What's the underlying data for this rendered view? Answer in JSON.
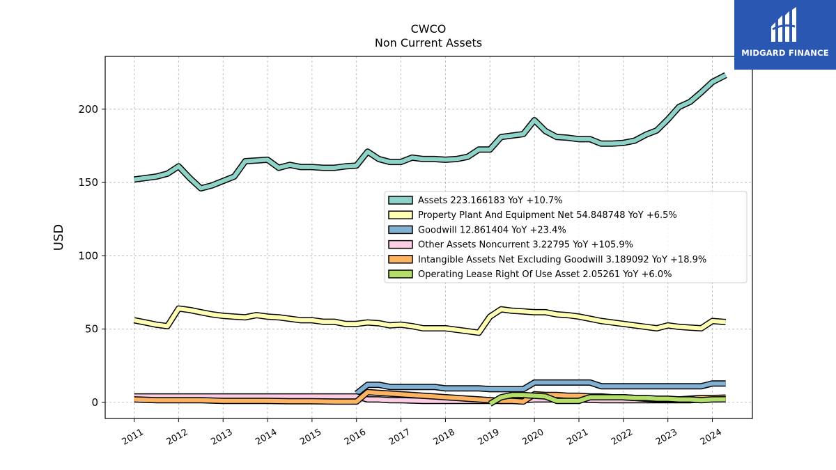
{
  "chart_data": {
    "type": "line",
    "title": "CWCO",
    "subtitle": "Non Current  Assets",
    "ylabel": "USD",
    "xlabel": "",
    "ylim": [
      -11,
      236
    ],
    "xlim": [
      2010.35,
      2024.9
    ],
    "yticks": [
      0,
      50,
      100,
      150,
      200
    ],
    "xticks": [
      "2011",
      "2012",
      "2013",
      "2014",
      "2015",
      "2016",
      "2017",
      "2018",
      "2019",
      "2020",
      "2021",
      "2022",
      "2023",
      "2024"
    ],
    "grid": true,
    "legend_position": "center-right",
    "series": [
      {
        "name": "Assets  223.166183 YoY +10.7%",
        "color": "#8dd3c7",
        "points": [
          [
            2011.0,
            152
          ],
          [
            2011.25,
            153
          ],
          [
            2011.5,
            154
          ],
          [
            2011.75,
            156
          ],
          [
            2012.0,
            161
          ],
          [
            2012.25,
            153
          ],
          [
            2012.5,
            146
          ],
          [
            2012.75,
            148
          ],
          [
            2013.0,
            151
          ],
          [
            2013.25,
            154
          ],
          [
            2013.5,
            164.5
          ],
          [
            2013.75,
            165
          ],
          [
            2014.0,
            165.5
          ],
          [
            2014.25,
            160
          ],
          [
            2014.5,
            162
          ],
          [
            2014.75,
            160.5
          ],
          [
            2015.0,
            160.5
          ],
          [
            2015.25,
            160
          ],
          [
            2015.5,
            160
          ],
          [
            2015.75,
            161
          ],
          [
            2016.0,
            161.5
          ],
          [
            2016.25,
            171
          ],
          [
            2016.5,
            166
          ],
          [
            2016.75,
            164
          ],
          [
            2017.0,
            164
          ],
          [
            2017.25,
            167
          ],
          [
            2017.5,
            166
          ],
          [
            2017.75,
            166
          ],
          [
            2018.0,
            165.5
          ],
          [
            2018.25,
            166
          ],
          [
            2018.5,
            167.5
          ],
          [
            2018.75,
            172.5
          ],
          [
            2019.0,
            172.5
          ],
          [
            2019.25,
            181
          ],
          [
            2019.5,
            182
          ],
          [
            2019.75,
            183
          ],
          [
            2020.0,
            192.5
          ],
          [
            2020.25,
            185
          ],
          [
            2020.5,
            181
          ],
          [
            2020.75,
            180.5
          ],
          [
            2021.0,
            179.5
          ],
          [
            2021.25,
            179.5
          ],
          [
            2021.5,
            176.5
          ],
          [
            2021.75,
            176.5
          ],
          [
            2022.0,
            177
          ],
          [
            2022.25,
            178.5
          ],
          [
            2022.5,
            182.5
          ],
          [
            2022.75,
            185.5
          ],
          [
            2023.0,
            193
          ],
          [
            2023.25,
            201.5
          ],
          [
            2023.5,
            205
          ],
          [
            2023.75,
            211.5
          ],
          [
            2024.0,
            218.5
          ],
          [
            2024.3,
            223.2
          ]
        ]
      },
      {
        "name": "Property Plant And Equipment Net  54.848748 YoY +6.5%",
        "color": "#ffffb3",
        "points": [
          [
            2011.0,
            56
          ],
          [
            2011.25,
            54.5
          ],
          [
            2011.5,
            53
          ],
          [
            2011.75,
            52
          ],
          [
            2012.0,
            64
          ],
          [
            2012.25,
            63
          ],
          [
            2012.5,
            61.5
          ],
          [
            2012.75,
            60
          ],
          [
            2013.0,
            59
          ],
          [
            2013.25,
            58.5
          ],
          [
            2013.5,
            58
          ],
          [
            2013.75,
            59.5
          ],
          [
            2014.0,
            58.5
          ],
          [
            2014.25,
            58
          ],
          [
            2014.5,
            57
          ],
          [
            2014.75,
            56
          ],
          [
            2015.0,
            56
          ],
          [
            2015.25,
            55
          ],
          [
            2015.5,
            55
          ],
          [
            2015.75,
            53.5
          ],
          [
            2016.0,
            53.5
          ],
          [
            2016.25,
            54.5
          ],
          [
            2016.5,
            54
          ],
          [
            2016.75,
            52.5
          ],
          [
            2017.0,
            53
          ],
          [
            2017.25,
            52
          ],
          [
            2017.5,
            50.5
          ],
          [
            2017.75,
            50.5
          ],
          [
            2018.0,
            50.5
          ],
          [
            2018.25,
            49.5
          ],
          [
            2018.5,
            48.5
          ],
          [
            2018.75,
            47.5
          ],
          [
            2019.0,
            58.5
          ],
          [
            2019.25,
            63.5
          ],
          [
            2019.5,
            62.5
          ],
          [
            2019.75,
            62
          ],
          [
            2020.0,
            61.5
          ],
          [
            2020.25,
            61.5
          ],
          [
            2020.5,
            60
          ],
          [
            2020.75,
            59.5
          ],
          [
            2021.0,
            58.5
          ],
          [
            2021.25,
            57
          ],
          [
            2021.5,
            55.5
          ],
          [
            2021.75,
            54.5
          ],
          [
            2022.0,
            53.5
          ],
          [
            2022.25,
            52.5
          ],
          [
            2022.5,
            51.5
          ],
          [
            2022.75,
            50.5
          ],
          [
            2023.0,
            52.5
          ],
          [
            2023.25,
            51.5
          ],
          [
            2023.5,
            51
          ],
          [
            2023.75,
            50.5
          ],
          [
            2024.0,
            55.5
          ],
          [
            2024.3,
            54.8
          ]
        ]
      },
      {
        "name": "Goodwill  12.861404 YoY +23.4%",
        "color": "#80b1d3",
        "points": [
          [
            2016.0,
            6
          ],
          [
            2016.25,
            12
          ],
          [
            2016.5,
            12
          ],
          [
            2016.75,
            10.5
          ],
          [
            2017.0,
            10.5
          ],
          [
            2017.25,
            10.5
          ],
          [
            2017.5,
            10.5
          ],
          [
            2017.75,
            10.5
          ],
          [
            2018.0,
            9.5
          ],
          [
            2018.25,
            9.5
          ],
          [
            2018.5,
            9.5
          ],
          [
            2018.75,
            9.5
          ],
          [
            2019.0,
            9
          ],
          [
            2019.25,
            9
          ],
          [
            2019.5,
            9
          ],
          [
            2019.75,
            9
          ],
          [
            2020.0,
            13.5
          ],
          [
            2020.25,
            13.5
          ],
          [
            2020.5,
            13.5
          ],
          [
            2020.75,
            13.5
          ],
          [
            2021.0,
            13.5
          ],
          [
            2021.25,
            13.5
          ],
          [
            2021.5,
            11
          ],
          [
            2021.75,
            11
          ],
          [
            2022.0,
            11
          ],
          [
            2022.25,
            11
          ],
          [
            2022.5,
            11
          ],
          [
            2022.75,
            11
          ],
          [
            2023.0,
            11
          ],
          [
            2023.25,
            11
          ],
          [
            2023.5,
            11
          ],
          [
            2023.75,
            11
          ],
          [
            2024.0,
            12.9
          ],
          [
            2024.3,
            12.9
          ]
        ]
      },
      {
        "name": "Other Assets Noncurrent  3.22795 YoY +105.9%",
        "color": "#fccde5",
        "points": [
          [
            2011.0,
            4
          ],
          [
            2012.0,
            4
          ],
          [
            2013.0,
            4
          ],
          [
            2014.0,
            4
          ],
          [
            2015.0,
            4
          ],
          [
            2016.0,
            4
          ],
          [
            2016.25,
            2
          ],
          [
            2016.5,
            2
          ],
          [
            2016.75,
            1.5
          ],
          [
            2017.0,
            1.5
          ],
          [
            2017.5,
            1
          ],
          [
            2018.0,
            1
          ],
          [
            2018.5,
            1
          ],
          [
            2019.0,
            1
          ],
          [
            2019.5,
            1
          ],
          [
            2020.0,
            2
          ],
          [
            2020.5,
            2
          ],
          [
            2021.0,
            2
          ],
          [
            2021.5,
            1.5
          ],
          [
            2022.0,
            1.5
          ],
          [
            2022.5,
            1.5
          ],
          [
            2023.0,
            1.5
          ],
          [
            2023.5,
            1.5
          ],
          [
            2024.0,
            2.5
          ],
          [
            2024.3,
            3.2
          ]
        ]
      },
      {
        "name": "Intangible Assets Net Excluding Goodwill  3.189092 YoY +18.9%",
        "color": "#fdb462",
        "points": [
          [
            2011.0,
            2
          ],
          [
            2011.5,
            1.5
          ],
          [
            2012.0,
            1.5
          ],
          [
            2012.5,
            1.5
          ],
          [
            2013.0,
            1
          ],
          [
            2013.5,
            1
          ],
          [
            2014.0,
            1
          ],
          [
            2014.5,
            0.8
          ],
          [
            2015.0,
            0.8
          ],
          [
            2015.5,
            0.5
          ],
          [
            2016.0,
            0.5
          ],
          [
            2016.25,
            7
          ],
          [
            2016.5,
            6.5
          ],
          [
            2016.75,
            6
          ],
          [
            2017.0,
            5.5
          ],
          [
            2017.25,
            5
          ],
          [
            2017.5,
            4.5
          ],
          [
            2017.75,
            4
          ],
          [
            2018.0,
            3.5
          ],
          [
            2018.25,
            3
          ],
          [
            2018.5,
            2.5
          ],
          [
            2018.75,
            2
          ],
          [
            2019.0,
            1.5
          ],
          [
            2019.25,
            1
          ],
          [
            2019.5,
            1
          ],
          [
            2019.75,
            0.5
          ],
          [
            2020.0,
            5.5
          ],
          [
            2020.25,
            5
          ],
          [
            2020.5,
            5
          ],
          [
            2020.75,
            4.5
          ],
          [
            2021.0,
            4.5
          ],
          [
            2021.25,
            4
          ],
          [
            2021.5,
            4
          ],
          [
            2021.75,
            3.5
          ],
          [
            2022.0,
            3.5
          ],
          [
            2022.25,
            3
          ],
          [
            2022.5,
            2.5
          ],
          [
            2022.75,
            2
          ],
          [
            2023.0,
            2
          ],
          [
            2023.25,
            2
          ],
          [
            2023.5,
            2.5
          ],
          [
            2023.75,
            3
          ],
          [
            2024.0,
            3
          ],
          [
            2024.3,
            3.2
          ]
        ]
      },
      {
        "name": "Operating Lease Right Of Use Asset  2.05261 YoY +6.0%",
        "color": "#b3de69",
        "points": [
          [
            2019.0,
            -1
          ],
          [
            2019.25,
            3.5
          ],
          [
            2019.5,
            5
          ],
          [
            2019.75,
            5
          ],
          [
            2020.0,
            4.5
          ],
          [
            2020.25,
            4
          ],
          [
            2020.5,
            1
          ],
          [
            2020.75,
            1
          ],
          [
            2021.0,
            1
          ],
          [
            2021.25,
            3.5
          ],
          [
            2021.5,
            3.5
          ],
          [
            2021.75,
            3.5
          ],
          [
            2022.0,
            3.5
          ],
          [
            2022.25,
            3
          ],
          [
            2022.5,
            3
          ],
          [
            2022.75,
            2.5
          ],
          [
            2023.0,
            2.5
          ],
          [
            2023.25,
            2
          ],
          [
            2023.5,
            2
          ],
          [
            2023.75,
            1.5
          ],
          [
            2024.0,
            2
          ],
          [
            2024.3,
            2.05
          ]
        ]
      }
    ]
  },
  "logo": {
    "text": "MIDGARD FINANCE"
  }
}
